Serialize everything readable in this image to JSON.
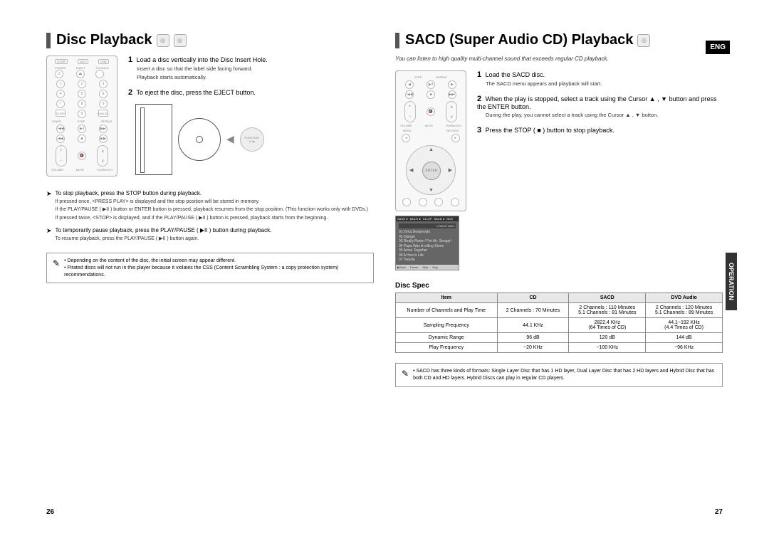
{
  "left": {
    "title": "Disc Playback",
    "steps": [
      {
        "n": "1",
        "text": "Load a disc vertically into the Disc Insert Hole.",
        "subs": [
          "Insert a disc so that the label side facing forward.",
          "Playback starts automatically."
        ]
      },
      {
        "n": "2",
        "text": "To eject the disc, press the EJECT button."
      }
    ],
    "notes": [
      {
        "lead": "To stop playback, press the STOP button during playback.",
        "subs": [
          "If pressed once, <PRESS PLAY> is displayed and the stop position will be stored in memory.",
          "If the PLAY/PAUSE ( ▶II ) button or ENTER button is pressed, playback resumes from the stop position. (This function works only with DVDs.)",
          "If pressed twice, <STOP> is displayed, and if the PLAY/PAUSE ( ▶II ) button is pressed, playback starts from the beginning."
        ]
      },
      {
        "lead": "To temporarily pause playback, press the PLAY/PAUSE ( ▶II ) button during playback.",
        "subs": [
          "To resume playback, press the PLAY/PAUSE ( ▶II ) button again."
        ]
      }
    ],
    "tips": [
      "Depending on the content of the disc, the initial screen may appear different.",
      "Pirated discs will not run in this player because it violates the CSS (Content Scrambling System : a copy protection system) recommendations."
    ],
    "pagenum": "26"
  },
  "right": {
    "title": "SACD (Super Audio CD) Playback",
    "lang": "ENG",
    "subtitle": "You can listen to high quality multi-channel sound that exceeds regular CD playback.",
    "side_tab": "OPERATION",
    "steps": [
      {
        "n": "1",
        "text": "Load the SACD disc.",
        "subs": [
          "The SACD menu appears and playback will start."
        ]
      },
      {
        "n": "2",
        "text": "When the play is stopped, select a track using the Cursor ▲ , ▼ button and press the ENTER button.",
        "subs": [
          "During the play, you cannot select a track using the Cursor ▲ , ▼ button."
        ]
      },
      {
        "n": "3",
        "text": "Press the STOP ( ■ ) button to stop playback."
      }
    ],
    "menu_screen": {
      "header": [
        "SACD ●",
        "MULTI ●",
        "CD-CP",
        "SACD ●",
        "MOV"
      ],
      "album": "V:SACD NAVI",
      "tracks": [
        "01 Zena Desperado",
        "02 Django",
        "03 Really Rosie / Pet Ah. Seegar!",
        "04 Papa Was A rolling Stone",
        "05 Alone Together",
        "06 A Hero's Life",
        "07 Tequila"
      ],
      "footer": [
        "▶Back",
        "Pause",
        "Skip",
        "Stop"
      ]
    },
    "spec_title": "Disc Spec",
    "spec": {
      "columns": [
        "Item",
        "CD",
        "SACD",
        "DVD Audio"
      ],
      "rows": [
        [
          "Number of Channels and Play Time",
          "2 Channels : 70 Minutes",
          "2 Channels : 110 Minutes\n5.1 Channels : 81 Minutes",
          "2 Channels : 120 Minutes\n5.1 Channels : 89 Minutes"
        ],
        [
          "Sampling Frequency",
          "44.1 KHz",
          "2822.4 KHz\n(64 Times of CD)",
          "44.1~192 KHz\n(4.4 Times of CD)"
        ],
        [
          "Dynamic Range",
          "96 dB",
          "120 dB",
          "144 dB"
        ],
        [
          "Play Frequency",
          "~20 KHz",
          "~100 KHz",
          "~96 KHz"
        ]
      ]
    },
    "tip": "SACD has three kinds of formats: Single Layer Disc that has 1 HD layer, Dual Layer Disc that has 2 HD layers and Hybrid Disc that has both CD and HD layers. Hybrid Discs can play in regular CD players.",
    "pagenum": "27"
  },
  "remote_labels": {
    "top": [
      "DVDR",
      "AUX",
      "USB"
    ],
    "power": "POWER",
    "eject": "EJECT",
    "tvvideo": "TV/VIDEO",
    "sleep": "SLEEP",
    "slow": "SLOW",
    "cancel": "CANCEL",
    "tuner": "TUNER",
    "step": "STEP",
    "repeat": "REPEAT",
    "volume": "VOLUME",
    "mute": "MUTE",
    "tuning": "TUNING/CH",
    "menu": "MENU",
    "return": "RETURN",
    "enter": "ENTER",
    "function": "FUNCTION"
  }
}
